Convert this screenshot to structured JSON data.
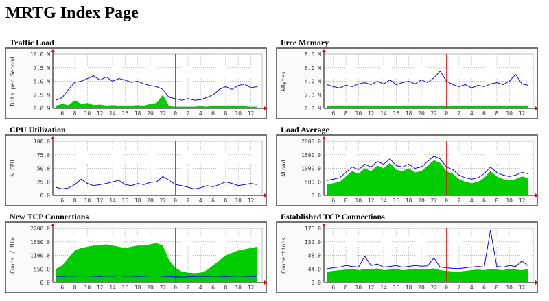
{
  "page": {
    "title": "MRTG Index Page"
  },
  "chart_data": [
    {
      "type": "line",
      "title": "Traffic Load",
      "y_label": "Bits per Second",
      "grid": true,
      "vline": 24,
      "x": [
        5,
        6,
        7,
        8,
        9,
        10,
        11,
        12,
        13,
        14,
        15,
        16,
        17,
        18,
        19,
        20,
        21,
        22,
        23,
        24,
        25,
        26,
        27,
        28,
        29,
        30,
        31,
        32,
        33,
        34,
        35,
        36,
        37
      ],
      "xlim": [
        4.5,
        37.8
      ],
      "xticks": [
        6,
        8,
        10,
        12,
        14,
        16,
        18,
        20,
        22,
        {
          "value": 24,
          "label": "0"
        },
        {
          "value": 26,
          "label": "2"
        },
        {
          "value": 28,
          "label": "4"
        },
        {
          "value": 30,
          "label": "6"
        },
        {
          "value": 32,
          "label": "8"
        },
        {
          "value": 34,
          "label": "10"
        },
        {
          "value": 36,
          "label": "12"
        }
      ],
      "ylim": [
        0,
        10
      ],
      "yticks": [
        {
          "value": 0,
          "label": "0.0 M"
        },
        {
          "value": 2.5,
          "label": "2.5 M"
        },
        {
          "value": 5,
          "label": "5.0 M"
        },
        {
          "value": 7.5,
          "label": "7.5 M"
        },
        {
          "value": 10,
          "label": "10.0 M"
        }
      ],
      "series": [
        {
          "style": "area",
          "color": "#00cc00",
          "values": [
            0.5,
            0.8,
            0.6,
            1.5,
            0.8,
            1.0,
            0.6,
            0.7,
            0.5,
            0.6,
            0.5,
            0.4,
            0.5,
            0.6,
            0.5,
            0.8,
            1.0,
            2.5,
            0.4,
            0.3,
            0.3,
            0.3,
            0.3,
            0.4,
            0.3,
            0.5,
            0.5,
            0.4,
            0.5,
            0.4,
            0.4,
            0.3,
            0.3
          ]
        },
        {
          "style": "line",
          "color": "#0000ff",
          "values": [
            1.5,
            2.0,
            3.5,
            4.8,
            5.0,
            5.5,
            6.0,
            5.2,
            5.8,
            5.0,
            5.5,
            5.2,
            4.8,
            5.0,
            4.5,
            4.2,
            4.0,
            3.5,
            2.0,
            1.8,
            1.5,
            1.8,
            1.5,
            1.6,
            2.0,
            2.5,
            3.5,
            4.0,
            3.5,
            4.2,
            4.5,
            3.8,
            4.0
          ]
        }
      ]
    },
    {
      "type": "line",
      "title": "Free Memory",
      "y_label": "kBytes",
      "grid": true,
      "vline": 24,
      "x": [
        5,
        6,
        7,
        8,
        9,
        10,
        11,
        12,
        13,
        14,
        15,
        16,
        17,
        18,
        19,
        20,
        21,
        22,
        23,
        24,
        25,
        26,
        27,
        28,
        29,
        30,
        31,
        32,
        33,
        34,
        35,
        36,
        37
      ],
      "xlim": [
        4.5,
        37.8
      ],
      "xticks": [
        6,
        8,
        10,
        12,
        14,
        16,
        18,
        20,
        22,
        {
          "value": 24,
          "label": "0"
        },
        {
          "value": 26,
          "label": "2"
        },
        {
          "value": 28,
          "label": "4"
        },
        {
          "value": 30,
          "label": "6"
        },
        {
          "value": 32,
          "label": "8"
        },
        {
          "value": 34,
          "label": "10"
        },
        {
          "value": 36,
          "label": "12"
        }
      ],
      "ylim": [
        0,
        8
      ],
      "yticks": [
        {
          "value": 0,
          "label": "0.0 M"
        },
        {
          "value": 2,
          "label": "2.0 M"
        },
        {
          "value": 4,
          "label": "4.0 M"
        },
        {
          "value": 6,
          "label": "6.0 M"
        },
        {
          "value": 8,
          "label": "8.0 M"
        }
      ],
      "series": [
        {
          "style": "area",
          "color": "#00cc00",
          "values": [
            0.3,
            0.3,
            0.3,
            0.3,
            0.3,
            0.3,
            0.3,
            0.3,
            0.3,
            0.3,
            0.3,
            0.3,
            0.3,
            0.3,
            0.3,
            0.3,
            0.3,
            0.3,
            0.3,
            0.3,
            0.3,
            0.3,
            0.3,
            0.3,
            0.3,
            0.3,
            0.3,
            0.3,
            0.3,
            0.3,
            0.3,
            0.3,
            0.3
          ]
        },
        {
          "style": "line",
          "color": "#0000ff",
          "values": [
            3.5,
            3.2,
            3.0,
            3.4,
            3.2,
            3.6,
            3.8,
            3.5,
            4.0,
            3.6,
            4.2,
            3.5,
            3.8,
            4.0,
            3.6,
            4.2,
            3.8,
            4.5,
            5.5,
            4.0,
            3.5,
            3.2,
            3.5,
            3.0,
            3.4,
            3.2,
            3.6,
            3.8,
            3.5,
            4.0,
            5.0,
            3.6,
            3.4
          ]
        }
      ]
    },
    {
      "type": "line",
      "title": "CPU Utilization",
      "y_label": "% CPU",
      "grid": true,
      "vline": 24,
      "x": [
        5,
        6,
        7,
        8,
        9,
        10,
        11,
        12,
        13,
        14,
        15,
        16,
        17,
        18,
        19,
        20,
        21,
        22,
        23,
        24,
        25,
        26,
        27,
        28,
        29,
        30,
        31,
        32,
        33,
        34,
        35,
        36,
        37
      ],
      "xlim": [
        4.5,
        37.8
      ],
      "xticks": [
        6,
        8,
        10,
        12,
        14,
        16,
        18,
        20,
        22,
        {
          "value": 24,
          "label": "0"
        },
        {
          "value": 26,
          "label": "2"
        },
        {
          "value": 28,
          "label": "4"
        },
        {
          "value": 30,
          "label": "6"
        },
        {
          "value": 32,
          "label": "8"
        },
        {
          "value": 34,
          "label": "10"
        },
        {
          "value": 36,
          "label": "12"
        }
      ],
      "ylim": [
        0,
        100
      ],
      "yticks": [
        {
          "value": 0,
          "label": "0.0"
        },
        {
          "value": 25,
          "label": "25.0"
        },
        {
          "value": 50,
          "label": "50.0"
        },
        {
          "value": 75,
          "label": "75.0"
        },
        {
          "value": 100,
          "label": "100.0"
        }
      ],
      "series": [
        {
          "style": "line",
          "color": "#0000ff",
          "values": [
            15,
            12,
            14,
            20,
            30,
            22,
            18,
            20,
            22,
            25,
            28,
            20,
            18,
            22,
            20,
            24,
            25,
            35,
            28,
            20,
            18,
            15,
            12,
            14,
            18,
            16,
            20,
            25,
            22,
            18,
            20,
            22,
            20
          ]
        }
      ]
    },
    {
      "type": "line",
      "title": "Load Average",
      "y_label": "#Load",
      "grid": true,
      "vline": 24,
      "x": [
        5,
        6,
        7,
        8,
        9,
        10,
        11,
        12,
        13,
        14,
        15,
        16,
        17,
        18,
        19,
        20,
        21,
        22,
        23,
        24,
        25,
        26,
        27,
        28,
        29,
        30,
        31,
        32,
        33,
        34,
        35,
        36,
        37
      ],
      "xlim": [
        4.5,
        37.8
      ],
      "xticks": [
        6,
        8,
        10,
        12,
        14,
        16,
        18,
        20,
        22,
        {
          "value": 24,
          "label": "0"
        },
        {
          "value": 26,
          "label": "2"
        },
        {
          "value": 28,
          "label": "4"
        },
        {
          "value": 30,
          "label": "6"
        },
        {
          "value": 32,
          "label": "8"
        },
        {
          "value": 34,
          "label": "10"
        },
        {
          "value": 36,
          "label": "12"
        }
      ],
      "ylim": [
        0,
        2000
      ],
      "yticks": [
        {
          "value": 0,
          "label": "0.0"
        },
        {
          "value": 500,
          "label": "500.0"
        },
        {
          "value": 1000,
          "label": "1000.0"
        },
        {
          "value": 1500,
          "label": "1500.0"
        },
        {
          "value": 2000,
          "label": "2000.0"
        }
      ],
      "series": [
        {
          "style": "area",
          "color": "#00cc00",
          "values": [
            400,
            450,
            500,
            700,
            900,
            800,
            1000,
            900,
            1100,
            1000,
            1200,
            950,
            900,
            1000,
            850,
            900,
            1100,
            1300,
            1200,
            900,
            800,
            600,
            500,
            450,
            500,
            650,
            900,
            700,
            600,
            550,
            600,
            700,
            650
          ]
        },
        {
          "style": "line",
          "color": "#0000ff",
          "values": [
            550,
            600,
            650,
            850,
            1050,
            950,
            1150,
            1050,
            1250,
            1150,
            1350,
            1100,
            1050,
            1150,
            1000,
            1050,
            1250,
            1450,
            1350,
            1050,
            950,
            750,
            650,
            600,
            650,
            800,
            1050,
            850,
            750,
            700,
            750,
            850,
            800
          ]
        }
      ]
    },
    {
      "type": "line",
      "title": "New TCP Connections",
      "y_label": "Conns / Min",
      "grid": true,
      "vline": 24,
      "x": [
        5,
        6,
        7,
        8,
        9,
        10,
        11,
        12,
        13,
        14,
        15,
        16,
        17,
        18,
        19,
        20,
        21,
        22,
        23,
        24,
        25,
        26,
        27,
        28,
        29,
        30,
        31,
        32,
        33,
        34,
        35,
        36,
        37
      ],
      "xlim": [
        4.5,
        37.8
      ],
      "xticks": [
        6,
        8,
        10,
        12,
        14,
        16,
        18,
        20,
        22,
        {
          "value": 24,
          "label": "0"
        },
        {
          "value": 26,
          "label": "2"
        },
        {
          "value": 28,
          "label": "4"
        },
        {
          "value": 30,
          "label": "6"
        },
        {
          "value": 32,
          "label": "8"
        },
        {
          "value": 34,
          "label": "10"
        },
        {
          "value": 36,
          "label": "12"
        }
      ],
      "ylim": [
        0,
        2200
      ],
      "yticks": [
        {
          "value": 0,
          "label": "0.0"
        },
        {
          "value": 550,
          "label": "550.0"
        },
        {
          "value": 1100,
          "label": "1100.0"
        },
        {
          "value": 1650,
          "label": "1650.0"
        },
        {
          "value": 2200,
          "label": "2200.0"
        }
      ],
      "series": [
        {
          "style": "area",
          "color": "#00cc00",
          "values": [
            550,
            700,
            1000,
            1300,
            1400,
            1450,
            1500,
            1500,
            1550,
            1500,
            1450,
            1400,
            1450,
            1500,
            1500,
            1550,
            1600,
            1500,
            900,
            600,
            450,
            400,
            380,
            400,
            500,
            700,
            900,
            1100,
            1200,
            1300,
            1350,
            1400,
            1450
          ]
        },
        {
          "style": "line",
          "color": "#0000ff",
          "values": [
            250,
            240,
            260,
            250,
            270,
            260,
            250,
            240,
            260,
            250,
            270,
            250,
            260,
            240,
            250,
            260,
            270,
            250,
            240,
            230,
            220,
            230,
            240,
            250,
            240,
            260,
            250,
            240,
            250,
            260,
            250,
            240,
            250
          ]
        }
      ]
    },
    {
      "type": "line",
      "title": "Established TCP Connections",
      "y_label": "Connections",
      "grid": true,
      "vline": 24,
      "x": [
        5,
        6,
        7,
        8,
        9,
        10,
        11,
        12,
        13,
        14,
        15,
        16,
        17,
        18,
        19,
        20,
        21,
        22,
        23,
        24,
        25,
        26,
        27,
        28,
        29,
        30,
        31,
        32,
        33,
        34,
        35,
        36,
        37
      ],
      "xlim": [
        4.5,
        37.8
      ],
      "xticks": [
        6,
        8,
        10,
        12,
        14,
        16,
        18,
        20,
        22,
        {
          "value": 24,
          "label": "0"
        },
        {
          "value": 26,
          "label": "2"
        },
        {
          "value": 28,
          "label": "4"
        },
        {
          "value": 30,
          "label": "6"
        },
        {
          "value": 32,
          "label": "8"
        },
        {
          "value": 34,
          "label": "10"
        },
        {
          "value": 36,
          "label": "12"
        }
      ],
      "ylim": [
        0,
        176
      ],
      "yticks": [
        {
          "value": 0,
          "label": "0.0"
        },
        {
          "value": 44,
          "label": "44.0"
        },
        {
          "value": 88,
          "label": "88.0"
        },
        {
          "value": 132,
          "label": "132.0"
        },
        {
          "value": 176,
          "label": "176.0"
        }
      ],
      "series": [
        {
          "style": "area",
          "color": "#00cc00",
          "values": [
            35,
            38,
            40,
            42,
            45,
            40,
            44,
            42,
            46,
            40,
            42,
            44,
            40,
            42,
            45,
            43,
            44,
            46,
            40,
            38,
            36,
            35,
            38,
            40,
            42,
            40,
            44,
            42,
            40,
            45,
            42,
            40,
            44
          ]
        },
        {
          "style": "line",
          "color": "#0000ff",
          "values": [
            45,
            48,
            50,
            55,
            52,
            50,
            85,
            55,
            60,
            50,
            52,
            55,
            50,
            52,
            55,
            53,
            54,
            80,
            50,
            48,
            46,
            45,
            48,
            50,
            52,
            50,
            170,
            52,
            50,
            55,
            52,
            70,
            54
          ]
        }
      ]
    }
  ]
}
